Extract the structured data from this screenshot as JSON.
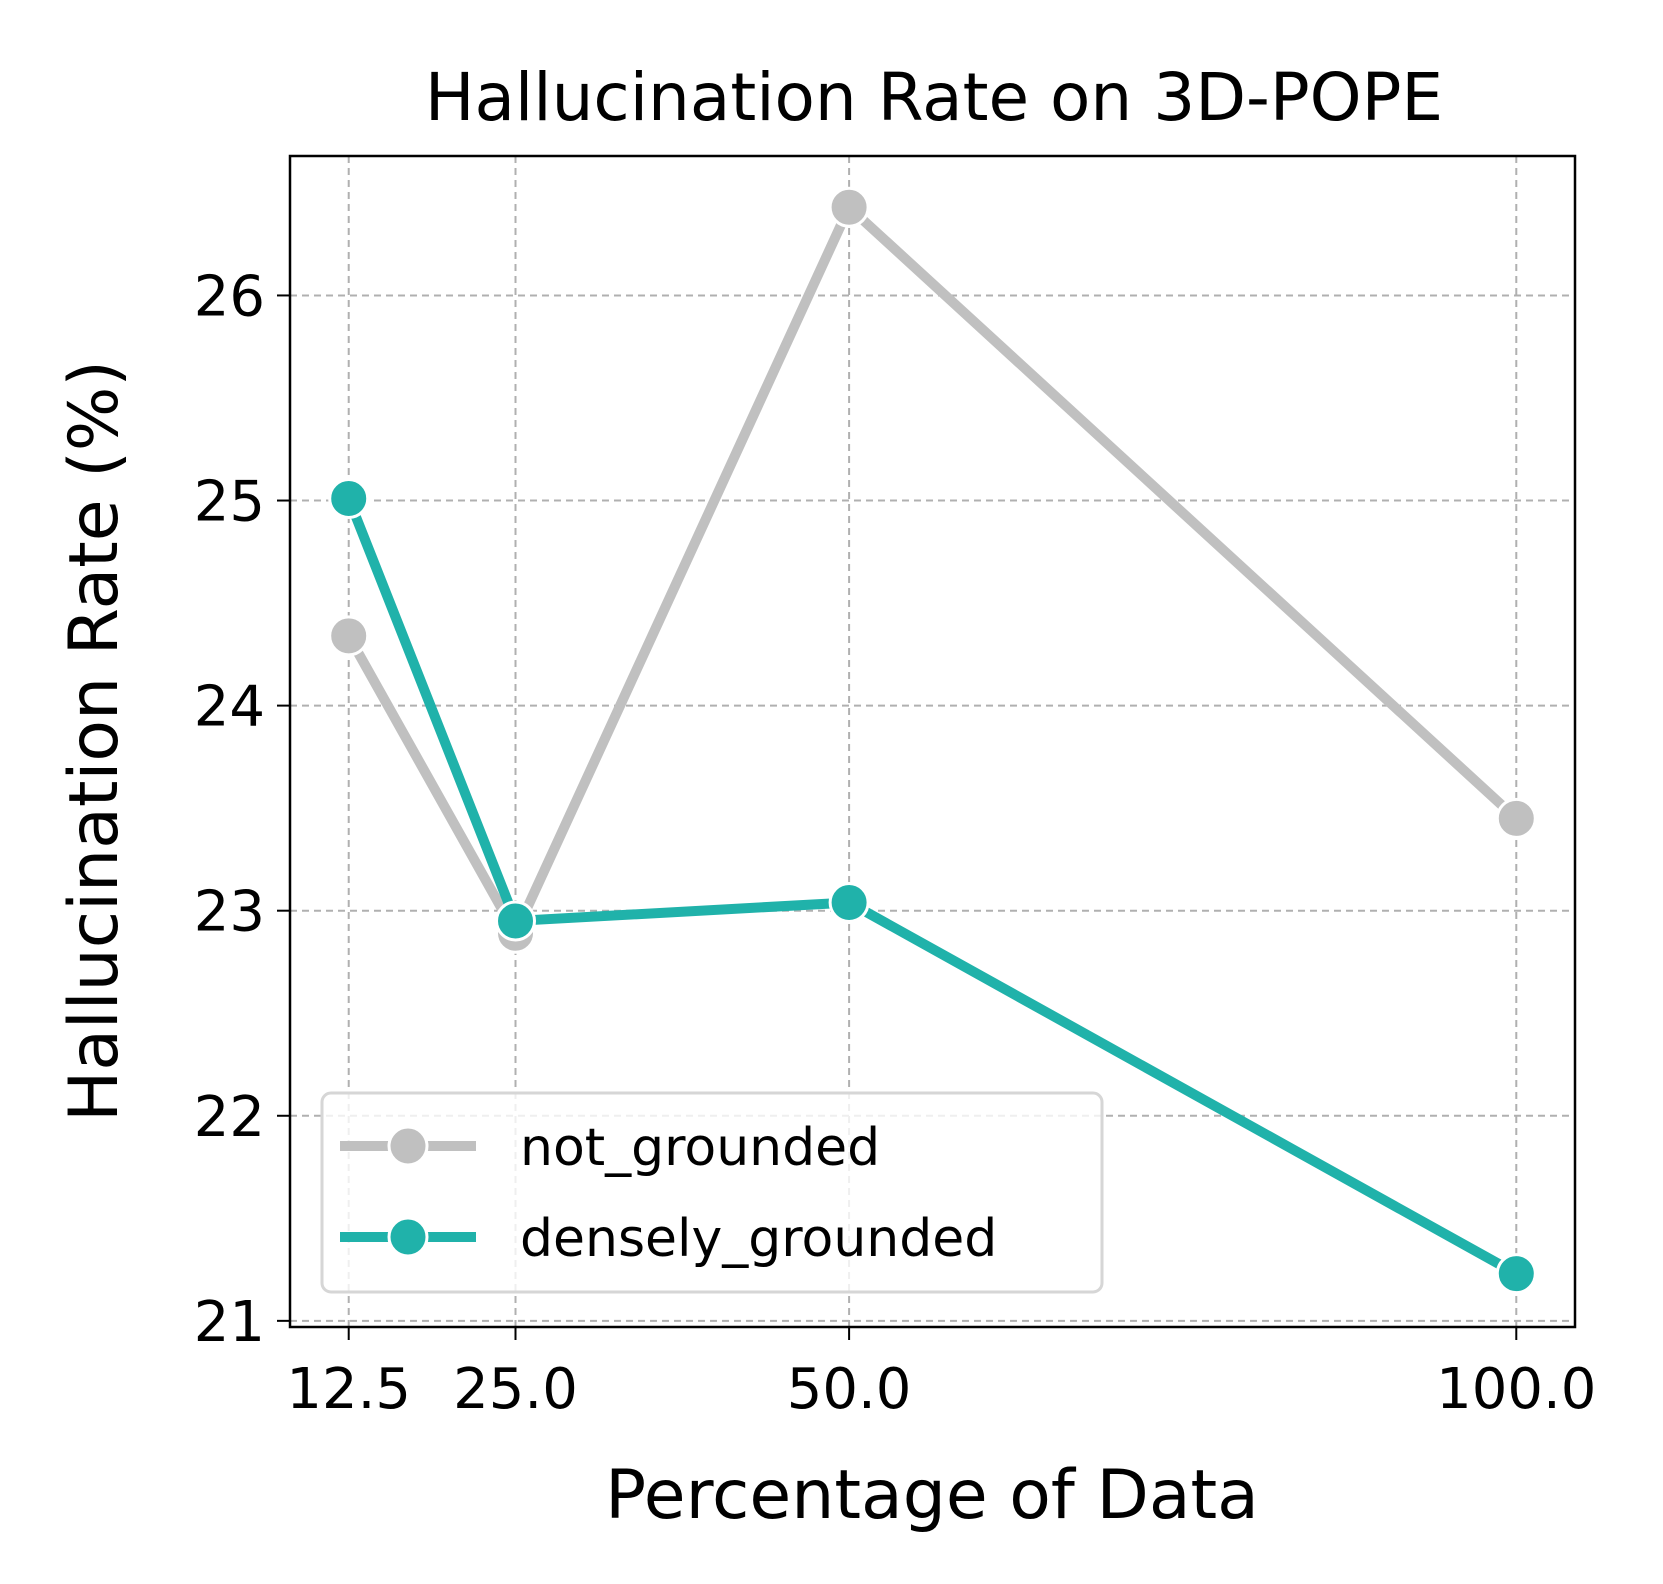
{
  "chart_data": {
    "type": "line",
    "title": "Hallucination Rate on 3D-POPE",
    "xlabel": "Percentage of Data",
    "ylabel": "Hallucination Rate (%)",
    "x": [
      12.5,
      25.0,
      50.0,
      100.0
    ],
    "x_tick_labels": [
      "12.5",
      "25.0",
      "50.0",
      "100.0"
    ],
    "y_ticks": [
      21,
      22,
      23,
      24,
      25,
      26
    ],
    "y_tick_labels": [
      "21",
      "22",
      "23",
      "24",
      "25",
      "26"
    ],
    "xlim": [
      8.1,
      104.4
    ],
    "ylim": [
      20.97,
      26.68
    ],
    "grid": true,
    "legend_position": "lower-left",
    "series": [
      {
        "name": "not_grounded",
        "color": "#c0c0c0",
        "marker": "circle",
        "values": [
          24.34,
          22.89,
          26.43,
          23.45
        ]
      },
      {
        "name": "densely_grounded",
        "color": "#20b2aa",
        "marker": "circle",
        "values": [
          25.01,
          22.95,
          23.04,
          21.23
        ]
      }
    ]
  }
}
